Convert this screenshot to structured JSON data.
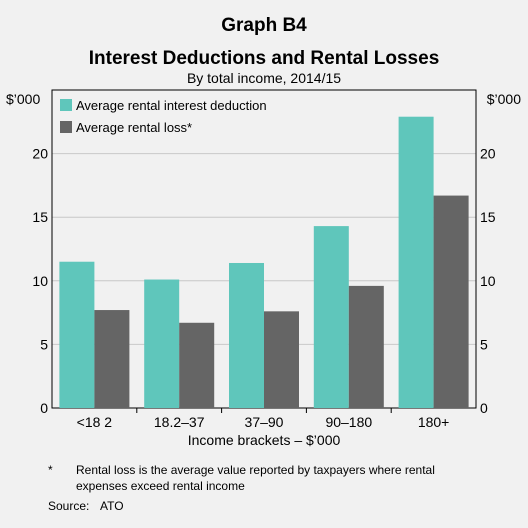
{
  "chart_data": {
    "type": "bar",
    "graph_label": "Graph B4",
    "title": "Interest Deductions and Rental Losses",
    "subtitle": "By total income, 2014/15",
    "y_unit_left": "$’000",
    "y_unit_right": "$’000",
    "xlabel": "Income brackets – $’000",
    "categories": [
      "<18 2",
      "18.2–37",
      "37–90",
      "90–180",
      "180+"
    ],
    "ylim": [
      0,
      25
    ],
    "yticks": [
      0,
      5,
      10,
      15,
      20
    ],
    "grid": true,
    "legend_position": "top-left",
    "series": [
      {
        "name": "Average rental interest deduction",
        "color": "#5fc6bb",
        "values": [
          11.5,
          10.1,
          11.4,
          14.3,
          22.9
        ]
      },
      {
        "name": "Average rental loss*",
        "color": "#656565",
        "values": [
          7.7,
          6.7,
          7.6,
          9.6,
          16.7
        ]
      }
    ]
  },
  "footnote": {
    "marker": "*",
    "text_line1": "Rental loss is the average value reported by taxpayers where rental",
    "text_line2": "expenses exceed rental income"
  },
  "source": {
    "label": "Source:",
    "value": "ATO"
  }
}
